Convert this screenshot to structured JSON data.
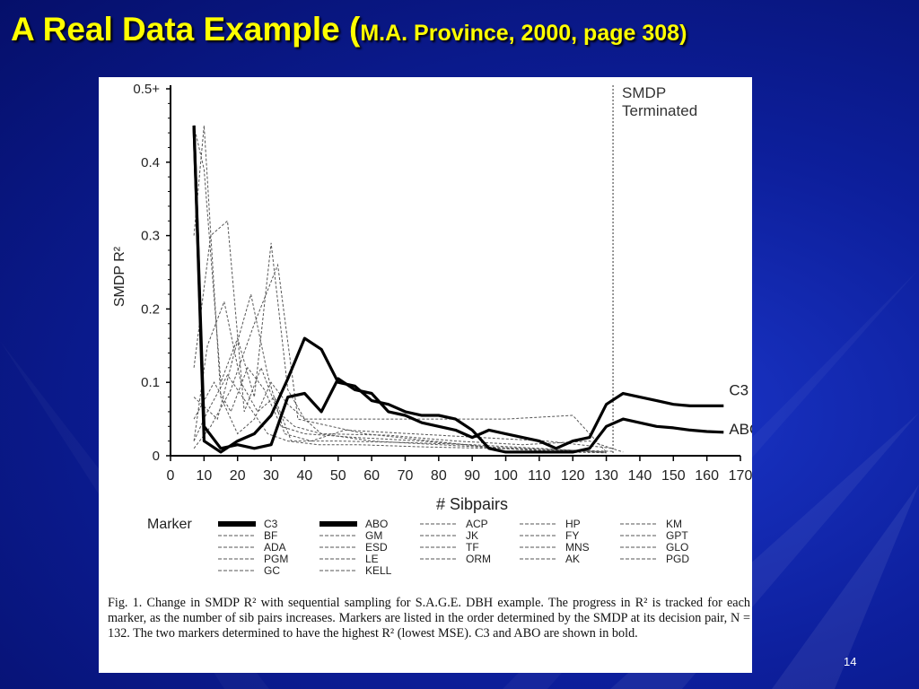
{
  "slide": {
    "title_main": "A Real Data Example (",
    "title_sub": "M.A. Province, 2000, page 308)",
    "slide_number": "14",
    "colors": {
      "background": "#0d1f9c",
      "title": "#ffff00",
      "text": "#ffffff"
    }
  },
  "figure": {
    "caption": "Fig. 1.    Change in SMDP R² with sequential sampling for S.A.G.E. DBH example. The progress in R² is tracked for each marker, as the number of sib pairs increases. Markers are listed in the order determined by the SMDP at its decision pair, N = 132. The two markers determined to have the highest R² (lowest MSE). C3 and ABO are shown in bold.",
    "legend_title": "Marker",
    "legend_columns": [
      [
        {
          "name": "C3",
          "style": "bold"
        },
        {
          "name": "BF",
          "style": "dash"
        },
        {
          "name": "ADA",
          "style": "dash"
        },
        {
          "name": "PGM",
          "style": "dash"
        },
        {
          "name": "GC",
          "style": "dash"
        }
      ],
      [
        {
          "name": "ABO",
          "style": "bold"
        },
        {
          "name": "GM",
          "style": "dash"
        },
        {
          "name": "ESD",
          "style": "dash"
        },
        {
          "name": "LE",
          "style": "dash"
        },
        {
          "name": "KELL",
          "style": "dash"
        }
      ],
      [
        {
          "name": "ACP",
          "style": "dash"
        },
        {
          "name": "JK",
          "style": "dash"
        },
        {
          "name": "TF",
          "style": "dash"
        },
        {
          "name": "ORM",
          "style": "dash"
        }
      ],
      [
        {
          "name": "HP",
          "style": "dash"
        },
        {
          "name": "FY",
          "style": "dash"
        },
        {
          "name": "MNS",
          "style": "dash"
        },
        {
          "name": "AK",
          "style": "dash"
        }
      ],
      [
        {
          "name": "KM",
          "style": "dash"
        },
        {
          "name": "GPT",
          "style": "dash"
        },
        {
          "name": "GLO",
          "style": "dash"
        },
        {
          "name": "PGD",
          "style": "dash"
        }
      ]
    ],
    "chart_data": {
      "type": "line",
      "title": "",
      "xlabel": "# Sibpairs",
      "ylabel": "SMDP R²",
      "xlim": [
        0,
        170
      ],
      "ylim": [
        0,
        0.5
      ],
      "x_ticks": [
        0,
        10,
        20,
        30,
        40,
        50,
        60,
        70,
        80,
        90,
        100,
        110,
        120,
        130,
        140,
        150,
        160,
        170
      ],
      "x_tick_labels": [
        "0",
        "10",
        "20",
        "30",
        "40",
        "50",
        "60",
        "70",
        "80",
        "90",
        "100",
        "110",
        "120",
        "130",
        "140",
        "150",
        "160",
        "170"
      ],
      "y_ticks": [
        0,
        0.1,
        0.2,
        0.3,
        0.4,
        0.5
      ],
      "y_tick_labels": [
        "0",
        "0.1",
        "0.2",
        "0.3",
        "0.4",
        "0.5+"
      ],
      "grid": false,
      "annotations": [
        {
          "text": "SMDP",
          "x": 132,
          "y": 0.5
        },
        {
          "text": "Terminated",
          "x": 132,
          "y": 0.47
        }
      ],
      "reference_lines": [
        {
          "orientation": "vertical",
          "x": 132,
          "style": "dotted",
          "label": "SMDP Terminated"
        }
      ],
      "series": [
        {
          "name": "C3",
          "style": "bold",
          "end_label": "C3",
          "x": [
            7,
            10,
            15,
            20,
            25,
            30,
            35,
            40,
            45,
            50,
            55,
            60,
            65,
            70,
            75,
            80,
            85,
            90,
            95,
            100,
            105,
            110,
            115,
            120,
            125,
            130,
            135,
            140,
            145,
            150,
            155,
            160,
            165
          ],
          "y": [
            0.45,
            0.04,
            0.01,
            0.015,
            0.01,
            0.015,
            0.08,
            0.085,
            0.06,
            0.105,
            0.09,
            0.085,
            0.06,
            0.055,
            0.045,
            0.04,
            0.035,
            0.025,
            0.035,
            0.03,
            0.025,
            0.02,
            0.01,
            0.02,
            0.025,
            0.07,
            0.085,
            0.08,
            0.075,
            0.07,
            0.068,
            0.068,
            0.068
          ]
        },
        {
          "name": "ABO",
          "style": "bold",
          "end_label": "ABO",
          "x": [
            7,
            10,
            15,
            20,
            25,
            30,
            35,
            40,
            45,
            50,
            55,
            60,
            65,
            70,
            75,
            80,
            85,
            90,
            95,
            100,
            105,
            110,
            115,
            120,
            125,
            130,
            135,
            140,
            145,
            150,
            155,
            160,
            165
          ],
          "y": [
            0.45,
            0.02,
            0.005,
            0.02,
            0.03,
            0.055,
            0.105,
            0.16,
            0.145,
            0.1,
            0.095,
            0.075,
            0.07,
            0.06,
            0.055,
            0.055,
            0.05,
            0.035,
            0.01,
            0.005,
            0.005,
            0.005,
            0.005,
            0.005,
            0.01,
            0.04,
            0.05,
            0.045,
            0.04,
            0.038,
            0.035,
            0.033,
            0.032
          ]
        }
      ],
      "background_series": [
        {
          "x": [
            7,
            10,
            15,
            20,
            25,
            30,
            35,
            40,
            60,
            80,
            100,
            120,
            130
          ],
          "y": [
            0.45,
            0.39,
            0.1,
            0.16,
            0.08,
            0.29,
            0.09,
            0.05,
            0.05,
            0.05,
            0.05,
            0.055,
            0.005
          ]
        },
        {
          "x": [
            7,
            12,
            17,
            22,
            27,
            32,
            37,
            45,
            60,
            80,
            100,
            130
          ],
          "y": [
            0.12,
            0.3,
            0.32,
            0.06,
            0.12,
            0.06,
            0.04,
            0.03,
            0.02,
            0.015,
            0.01,
            0.005
          ]
        },
        {
          "x": [
            7,
            11,
            16,
            21,
            26,
            31,
            36,
            50,
            70,
            90,
            110,
            130
          ],
          "y": [
            0.02,
            0.15,
            0.21,
            0.1,
            0.06,
            0.08,
            0.02,
            0.02,
            0.018,
            0.015,
            0.01,
            0.005
          ]
        },
        {
          "x": [
            7,
            13,
            18,
            23,
            28,
            33,
            40,
            55,
            75,
            95,
            115,
            130
          ],
          "y": [
            0.05,
            0.1,
            0.06,
            0.12,
            0.09,
            0.04,
            0.03,
            0.025,
            0.02,
            0.012,
            0.008,
            0.004
          ]
        },
        {
          "x": [
            7,
            10,
            15,
            20,
            25,
            30,
            35,
            45,
            65,
            85,
            105,
            125,
            135
          ],
          "y": [
            0.3,
            0.45,
            0.08,
            0.03,
            0.05,
            0.1,
            0.07,
            0.03,
            0.028,
            0.02,
            0.015,
            0.02,
            0.005
          ]
        },
        {
          "x": [
            7,
            14,
            19,
            24,
            29,
            34,
            42,
            52,
            72,
            92,
            112,
            132
          ],
          "y": [
            0.08,
            0.05,
            0.14,
            0.22,
            0.11,
            0.03,
            0.02,
            0.035,
            0.03,
            0.025,
            0.02,
            0.01
          ]
        },
        {
          "x": [
            7,
            12,
            18,
            25,
            32,
            38,
            48,
            58,
            78,
            98,
            118,
            130
          ],
          "y": [
            0.01,
            0.04,
            0.09,
            0.18,
            0.26,
            0.05,
            0.04,
            0.03,
            0.02,
            0.01,
            0.005,
            0.004
          ]
        },
        {
          "x": [
            7,
            11,
            17,
            23,
            29,
            35,
            44,
            56,
            76,
            96,
            116,
            132
          ],
          "y": [
            0.02,
            0.06,
            0.11,
            0.07,
            0.03,
            0.02,
            0.015,
            0.015,
            0.012,
            0.01,
            0.008,
            0.006
          ]
        }
      ]
    }
  }
}
